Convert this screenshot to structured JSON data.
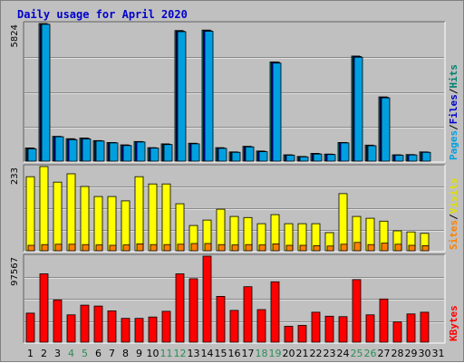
{
  "chart_data": {
    "type": "bar",
    "title": "Daily usage for April 2020",
    "title_color": "#0000cc",
    "categories": [
      "1",
      "2",
      "3",
      "4",
      "5",
      "6",
      "7",
      "8",
      "9",
      "10",
      "11",
      "12",
      "13",
      "14",
      "15",
      "16",
      "17",
      "18",
      "19",
      "20",
      "21",
      "22",
      "23",
      "24",
      "25",
      "26",
      "27",
      "28",
      "29",
      "30",
      "31"
    ],
    "weekend_days": [
      4,
      5,
      11,
      12,
      18,
      19,
      25,
      26
    ],
    "weekend_color": "#2e8b57",
    "panels": [
      {
        "id": "hits-files-pages",
        "max_label": "5824",
        "ylim": [
          0,
          5824
        ],
        "legend": [
          {
            "text": "Pages",
            "color": "#00a0e0"
          },
          {
            "text": "/",
            "color": "#000000"
          },
          {
            "text": "Files",
            "color": "#0000cc"
          },
          {
            "text": "/",
            "color": "#000000"
          },
          {
            "text": "Hits",
            "color": "#00806f"
          }
        ],
        "series": [
          {
            "name": "Hits",
            "color": "#00806f",
            "values": [
              560,
              5824,
              1050,
              950,
              980,
              870,
              790,
              690,
              830,
              570,
              730,
              5530,
              760,
              5550,
              570,
              390,
              630,
              430,
              4200,
              270,
              200,
              330,
              300,
              790,
              4450,
              680,
              2720,
              270,
              280,
              390,
              null
            ]
          },
          {
            "name": "Files",
            "color": "#0000cc",
            "values": [
              540,
              5800,
              1040,
              930,
              960,
              860,
              780,
              670,
              820,
              560,
              710,
              5500,
              740,
              5520,
              550,
              380,
              610,
              410,
              4180,
              260,
              190,
              310,
              290,
              780,
              4430,
              660,
              2700,
              260,
              270,
              380,
              null
            ]
          },
          {
            "name": "Pages",
            "color": "#00a0e0",
            "values": [
              520,
              5790,
              1030,
              910,
              940,
              850,
              770,
              660,
              810,
              550,
              700,
              5480,
              730,
              5500,
              540,
              370,
              600,
              400,
              4150,
              250,
              180,
              300,
              280,
              770,
              4400,
              650,
              2680,
              250,
              260,
              370,
              null
            ]
          }
        ]
      },
      {
        "id": "visits-sites",
        "max_label": "233",
        "ylim": [
          0,
          233
        ],
        "legend": [
          {
            "text": "Sites",
            "color": "#ff8000"
          },
          {
            "text": "/",
            "color": "#000000"
          },
          {
            "text": "Visits",
            "color": "#e0e000"
          }
        ],
        "series": [
          {
            "name": "Visits",
            "color": "#ffff00",
            "values": [
              205,
              233,
              190,
              213,
              178,
              150,
              150,
              138,
              205,
              185,
              185,
              130,
              70,
              85,
              115,
              95,
              92,
              75,
              100,
              75,
              75,
              75,
              50,
              158,
              95,
              90,
              82,
              55,
              52,
              48,
              null
            ]
          },
          {
            "name": "Sites",
            "color": "#ff8000",
            "values": [
              15,
              17,
              18,
              18,
              17,
              16,
              15,
              16,
              19,
              17,
              17,
              18,
              20,
              20,
              17,
              16,
              17,
              16,
              19,
              15,
              15,
              14,
              13,
              18,
              23,
              17,
              21,
              18,
              15,
              14,
              null
            ]
          }
        ]
      },
      {
        "id": "kbytes",
        "max_label": "97567",
        "ylim": [
          0,
          97567
        ],
        "legend": [
          {
            "text": "KBytes",
            "color": "#ff0000"
          }
        ],
        "series": [
          {
            "name": "KBytes",
            "color": "#ff0000",
            "values": [
              33000,
              77500,
              48000,
              31000,
              42000,
              41000,
              35500,
              27000,
              27000,
              28500,
              35000,
              77500,
              72000,
              97567,
              52000,
              36000,
              63000,
              37000,
              68500,
              18000,
              19000,
              34000,
              29500,
              29000,
              71000,
              31000,
              49000,
              23000,
              32000,
              34000,
              null
            ]
          }
        ]
      }
    ]
  }
}
